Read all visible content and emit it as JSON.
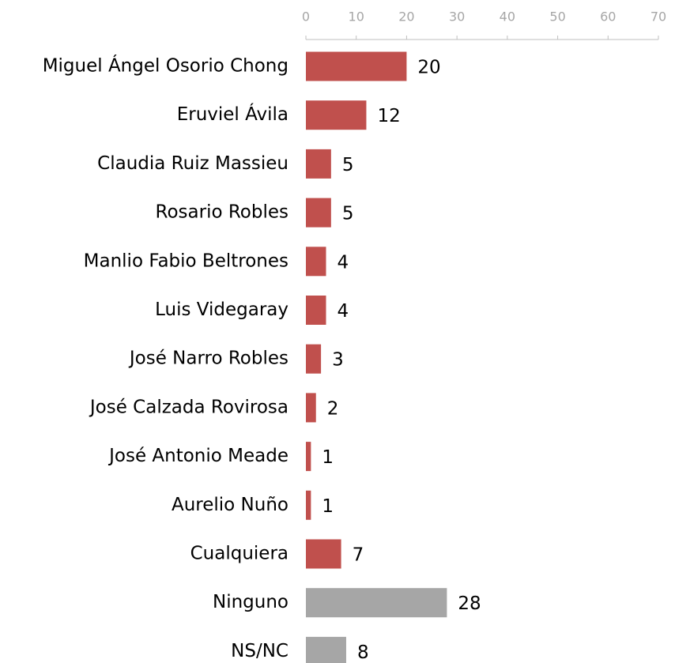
{
  "chart_data": {
    "type": "barh",
    "categories": [
      "Miguel Ángel Osorio Chong",
      "Eruviel Ávila",
      "Claudia Ruiz Massieu",
      "Rosario Robles",
      "Manlio Fabio Beltrones",
      "Luis Videgaray",
      "José Narro Robles",
      "José Calzada Rovirosa",
      "José Antonio Meade",
      "Aurelio Nuño",
      "Cualquiera",
      "Ninguno",
      "NS/NC"
    ],
    "values": [
      20,
      12,
      5,
      5,
      4,
      4,
      3,
      2,
      1,
      1,
      7,
      28,
      8
    ],
    "colors": [
      "#c0504d",
      "#c0504d",
      "#c0504d",
      "#c0504d",
      "#c0504d",
      "#c0504d",
      "#c0504d",
      "#c0504d",
      "#c0504d",
      "#c0504d",
      "#c0504d",
      "#a6a6a6",
      "#a6a6a6"
    ],
    "xlim": [
      0,
      70
    ],
    "xticks": [
      0,
      10,
      20,
      30,
      40,
      50,
      60,
      70
    ],
    "grid": false
  }
}
